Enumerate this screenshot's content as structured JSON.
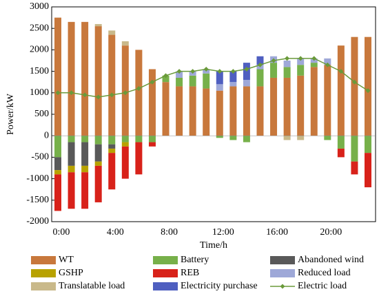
{
  "chart_data": {
    "type": "bar",
    "x_label": "Time/h",
    "y_label": "Power/kW",
    "categories": [
      "0:00",
      null,
      null,
      null,
      "4:00",
      null,
      null,
      null,
      "8:00",
      null,
      null,
      null,
      "12:00",
      null,
      null,
      null,
      "16:00",
      null,
      null,
      null,
      "20:00",
      null,
      null,
      null
    ],
    "ylim": [
      -2000,
      3000
    ],
    "yticks": [
      -2000,
      -1500,
      -1000,
      -500,
      0,
      500,
      1000,
      1500,
      2000,
      2500,
      3000
    ],
    "stacked": true,
    "series": [
      {
        "name": "WT",
        "color": "#c8783c",
        "values": [
          2750,
          2650,
          2650,
          2550,
          2350,
          2100,
          2000,
          1550,
          1250,
          1150,
          1150,
          1100,
          1050,
          1150,
          1150,
          1150,
          1350,
          1350,
          1400,
          1600,
          1650,
          2100,
          2300,
          2300
        ]
      },
      {
        "name": "Battery",
        "color": "#77b04a",
        "values": [
          -500,
          -150,
          -150,
          -200,
          -200,
          -150,
          -150,
          -150,
          150,
          200,
          250,
          350,
          -50,
          -100,
          -150,
          400,
          350,
          250,
          250,
          100,
          -100,
          -300,
          -600,
          -400
        ]
      },
      {
        "name": "Abandoned wind",
        "color": "#595959",
        "values": [
          -300,
          -550,
          -550,
          -400,
          -100,
          0,
          0,
          0,
          0,
          0,
          0,
          0,
          0,
          0,
          0,
          0,
          0,
          0,
          0,
          0,
          0,
          0,
          0,
          0
        ]
      },
      {
        "name": "GSHP",
        "color": "#b8a200",
        "values": [
          -100,
          -150,
          -150,
          -100,
          -100,
          -100,
          0,
          0,
          0,
          0,
          0,
          0,
          0,
          0,
          0,
          0,
          0,
          0,
          0,
          0,
          0,
          0,
          0,
          0
        ]
      },
      {
        "name": "REB",
        "color": "#d8221a",
        "values": [
          -850,
          -850,
          -850,
          -850,
          -850,
          -750,
          -750,
          -100,
          0,
          0,
          0,
          0,
          0,
          0,
          0,
          0,
          0,
          0,
          0,
          0,
          0,
          -200,
          -300,
          -800
        ]
      },
      {
        "name": "Reduced load",
        "color": "#9ea8d8",
        "values": [
          0,
          0,
          0,
          0,
          0,
          0,
          0,
          0,
          0,
          150,
          100,
          100,
          150,
          100,
          150,
          100,
          150,
          150,
          150,
          100,
          150,
          0,
          0,
          0
        ]
      },
      {
        "name": "Translatable load",
        "color": "#c9b98a",
        "values": [
          0,
          0,
          0,
          50,
          100,
          100,
          0,
          0,
          0,
          0,
          0,
          0,
          0,
          0,
          0,
          0,
          0,
          -100,
          -100,
          0,
          0,
          0,
          0,
          0
        ]
      },
      {
        "name": "Electricity purchase",
        "color": "#4f5fc0",
        "values": [
          0,
          0,
          0,
          0,
          0,
          0,
          0,
          0,
          0,
          0,
          0,
          0,
          300,
          250,
          400,
          200,
          0,
          0,
          0,
          0,
          0,
          0,
          0,
          0
        ]
      },
      {
        "name": "Electric load",
        "color": "#6a9a3a",
        "type": "line",
        "values": [
          1000,
          1000,
          950,
          900,
          950,
          1000,
          1100,
          1250,
          1400,
          1500,
          1500,
          1550,
          1500,
          1500,
          1550,
          1650,
          1750,
          1800,
          1800,
          1800,
          1650,
          1500,
          1250,
          1050
        ]
      }
    ]
  }
}
